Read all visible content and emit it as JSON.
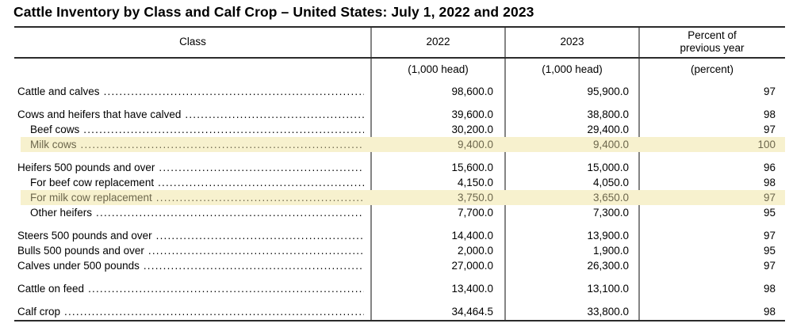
{
  "title": "Cattle Inventory by Class and Calf Crop – United States: July 1, 2022 and 2023",
  "table": {
    "columns": {
      "class": "Class",
      "y2022": "2022",
      "y2023": "2023",
      "percent": "Percent of previous year"
    },
    "units": {
      "y2022": "(1,000 head)",
      "y2023": "(1,000 head)",
      "percent": "(percent)"
    },
    "highlight_color": "#f7f1ce",
    "highlight_text_color": "#6d674d",
    "rows": [
      {
        "label": "Cattle and calves",
        "indent": 0,
        "v2022": "98,600.0",
        "v2023": "95,900.0",
        "pct": "97",
        "highlight": false
      },
      {
        "spacer": true
      },
      {
        "label": "Cows and heifers that have calved",
        "indent": 0,
        "v2022": "39,600.0",
        "v2023": "38,800.0",
        "pct": "98",
        "highlight": false
      },
      {
        "label": "Beef cows",
        "indent": 1,
        "v2022": "30,200.0",
        "v2023": "29,400.0",
        "pct": "97",
        "highlight": false
      },
      {
        "label": "Milk cows",
        "indent": 1,
        "v2022": "9,400.0",
        "v2023": "9,400.0",
        "pct": "100",
        "highlight": true
      },
      {
        "spacer": true
      },
      {
        "label": "Heifers 500 pounds and over",
        "indent": 0,
        "v2022": "15,600.0",
        "v2023": "15,000.0",
        "pct": "96",
        "highlight": false
      },
      {
        "label": "For beef cow replacement",
        "indent": 1,
        "v2022": "4,150.0",
        "v2023": "4,050.0",
        "pct": "98",
        "highlight": false
      },
      {
        "label": "For milk cow replacement",
        "indent": 1,
        "v2022": "3,750.0",
        "v2023": "3,650.0",
        "pct": "97",
        "highlight": true
      },
      {
        "label": "Other heifers",
        "indent": 1,
        "v2022": "7,700.0",
        "v2023": "7,300.0",
        "pct": "95",
        "highlight": false
      },
      {
        "spacer": true
      },
      {
        "label": "Steers 500 pounds and over",
        "indent": 0,
        "v2022": "14,400.0",
        "v2023": "13,900.0",
        "pct": "97",
        "highlight": false
      },
      {
        "label": "Bulls 500 pounds and over",
        "indent": 0,
        "v2022": "2,000.0",
        "v2023": "1,900.0",
        "pct": "95",
        "highlight": false
      },
      {
        "label": "Calves under 500 pounds",
        "indent": 0,
        "v2022": "27,000.0",
        "v2023": "26,300.0",
        "pct": "97",
        "highlight": false
      },
      {
        "spacer": true
      },
      {
        "label": "Cattle on feed",
        "indent": 0,
        "v2022": "13,400.0",
        "v2023": "13,100.0",
        "pct": "98",
        "highlight": false
      },
      {
        "spacer": true
      },
      {
        "label": "Calf crop",
        "indent": 0,
        "v2022": "34,464.5",
        "v2023": "33,800.0",
        "pct": "98",
        "highlight": false
      }
    ]
  }
}
